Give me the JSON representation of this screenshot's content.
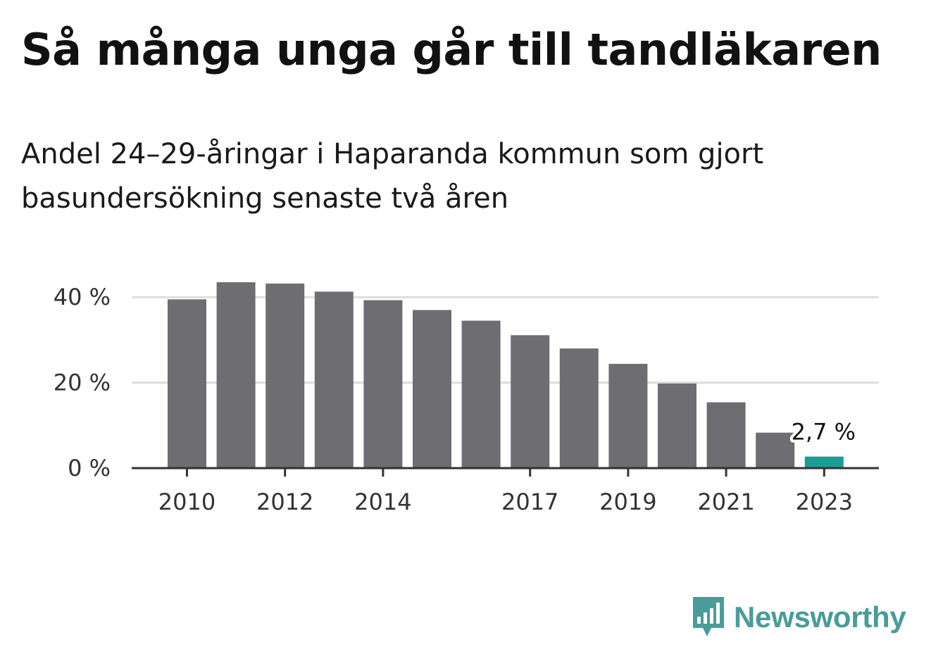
{
  "title": "Så många unga går till tandläkaren",
  "subtitle": "Andel 24–29-åringar i Haparanda kommun som gjort basundersökning senaste två åren",
  "brand": {
    "name": "Newsworthy",
    "icon": "newsworthy-logo-icon"
  },
  "colors": {
    "bar": "#6e6d72",
    "highlight": "#1a9e94",
    "grid": "#dddddd",
    "axis": "#333333"
  },
  "chart_data": {
    "type": "bar",
    "categories": [
      "2010",
      "2011",
      "2012",
      "2013",
      "2014",
      "2015",
      "2016",
      "2017",
      "2018",
      "2019",
      "2020",
      "2021",
      "2022",
      "2023"
    ],
    "values": [
      39.5,
      43.5,
      43.2,
      41.3,
      39.3,
      37.0,
      34.5,
      31.1,
      28.0,
      24.4,
      19.8,
      15.4,
      8.3,
      2.7
    ],
    "highlight_index": 13,
    "ylim": [
      0,
      45
    ],
    "yticks": [
      0,
      20,
      40
    ],
    "ytick_labels": [
      "0 %",
      "20 %",
      "40 %"
    ],
    "xtick_labels": [
      "2010",
      "2012",
      "2014",
      "2017",
      "2019",
      "2021",
      "2023"
    ],
    "annotation": {
      "category": "2023",
      "text": "2,7 %"
    },
    "xlabel": "",
    "ylabel": "",
    "grid": true
  }
}
